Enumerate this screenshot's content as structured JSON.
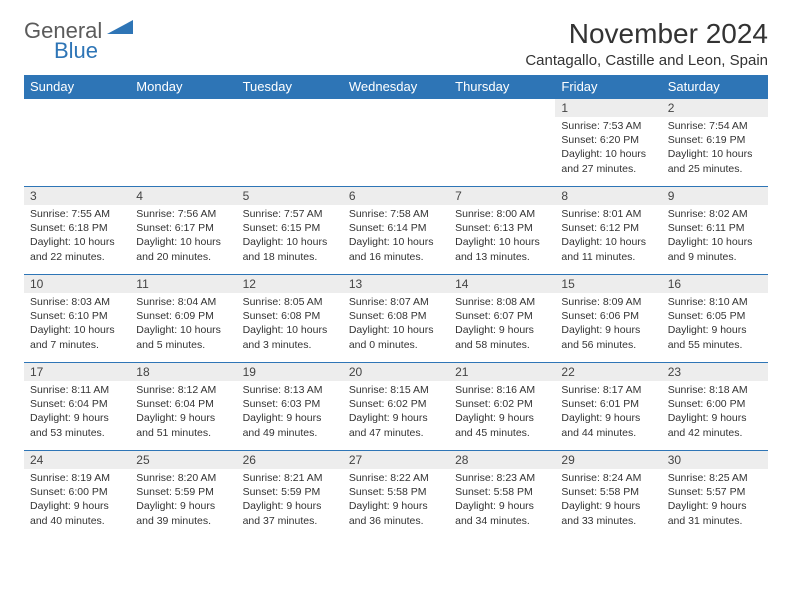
{
  "logo": {
    "word1": "General",
    "word2": "Blue",
    "color1": "#5b5b5b",
    "color2": "#2e75b6"
  },
  "title": "November 2024",
  "location": "Cantagallo, Castille and Leon, Spain",
  "header_bg": "#2e75b6",
  "header_fg": "#ffffff",
  "daynum_bg": "#ededed",
  "border_color": "#2e75b6",
  "day_headers": [
    "Sunday",
    "Monday",
    "Tuesday",
    "Wednesday",
    "Thursday",
    "Friday",
    "Saturday"
  ],
  "weeks": [
    [
      null,
      null,
      null,
      null,
      null,
      {
        "n": "1",
        "sr": "Sunrise: 7:53 AM",
        "ss": "Sunset: 6:20 PM",
        "d1": "Daylight: 10 hours",
        "d2": "and 27 minutes."
      },
      {
        "n": "2",
        "sr": "Sunrise: 7:54 AM",
        "ss": "Sunset: 6:19 PM",
        "d1": "Daylight: 10 hours",
        "d2": "and 25 minutes."
      }
    ],
    [
      {
        "n": "3",
        "sr": "Sunrise: 7:55 AM",
        "ss": "Sunset: 6:18 PM",
        "d1": "Daylight: 10 hours",
        "d2": "and 22 minutes."
      },
      {
        "n": "4",
        "sr": "Sunrise: 7:56 AM",
        "ss": "Sunset: 6:17 PM",
        "d1": "Daylight: 10 hours",
        "d2": "and 20 minutes."
      },
      {
        "n": "5",
        "sr": "Sunrise: 7:57 AM",
        "ss": "Sunset: 6:15 PM",
        "d1": "Daylight: 10 hours",
        "d2": "and 18 minutes."
      },
      {
        "n": "6",
        "sr": "Sunrise: 7:58 AM",
        "ss": "Sunset: 6:14 PM",
        "d1": "Daylight: 10 hours",
        "d2": "and 16 minutes."
      },
      {
        "n": "7",
        "sr": "Sunrise: 8:00 AM",
        "ss": "Sunset: 6:13 PM",
        "d1": "Daylight: 10 hours",
        "d2": "and 13 minutes."
      },
      {
        "n": "8",
        "sr": "Sunrise: 8:01 AM",
        "ss": "Sunset: 6:12 PM",
        "d1": "Daylight: 10 hours",
        "d2": "and 11 minutes."
      },
      {
        "n": "9",
        "sr": "Sunrise: 8:02 AM",
        "ss": "Sunset: 6:11 PM",
        "d1": "Daylight: 10 hours",
        "d2": "and 9 minutes."
      }
    ],
    [
      {
        "n": "10",
        "sr": "Sunrise: 8:03 AM",
        "ss": "Sunset: 6:10 PM",
        "d1": "Daylight: 10 hours",
        "d2": "and 7 minutes."
      },
      {
        "n": "11",
        "sr": "Sunrise: 8:04 AM",
        "ss": "Sunset: 6:09 PM",
        "d1": "Daylight: 10 hours",
        "d2": "and 5 minutes."
      },
      {
        "n": "12",
        "sr": "Sunrise: 8:05 AM",
        "ss": "Sunset: 6:08 PM",
        "d1": "Daylight: 10 hours",
        "d2": "and 3 minutes."
      },
      {
        "n": "13",
        "sr": "Sunrise: 8:07 AM",
        "ss": "Sunset: 6:08 PM",
        "d1": "Daylight: 10 hours",
        "d2": "and 0 minutes."
      },
      {
        "n": "14",
        "sr": "Sunrise: 8:08 AM",
        "ss": "Sunset: 6:07 PM",
        "d1": "Daylight: 9 hours",
        "d2": "and 58 minutes."
      },
      {
        "n": "15",
        "sr": "Sunrise: 8:09 AM",
        "ss": "Sunset: 6:06 PM",
        "d1": "Daylight: 9 hours",
        "d2": "and 56 minutes."
      },
      {
        "n": "16",
        "sr": "Sunrise: 8:10 AM",
        "ss": "Sunset: 6:05 PM",
        "d1": "Daylight: 9 hours",
        "d2": "and 55 minutes."
      }
    ],
    [
      {
        "n": "17",
        "sr": "Sunrise: 8:11 AM",
        "ss": "Sunset: 6:04 PM",
        "d1": "Daylight: 9 hours",
        "d2": "and 53 minutes."
      },
      {
        "n": "18",
        "sr": "Sunrise: 8:12 AM",
        "ss": "Sunset: 6:04 PM",
        "d1": "Daylight: 9 hours",
        "d2": "and 51 minutes."
      },
      {
        "n": "19",
        "sr": "Sunrise: 8:13 AM",
        "ss": "Sunset: 6:03 PM",
        "d1": "Daylight: 9 hours",
        "d2": "and 49 minutes."
      },
      {
        "n": "20",
        "sr": "Sunrise: 8:15 AM",
        "ss": "Sunset: 6:02 PM",
        "d1": "Daylight: 9 hours",
        "d2": "and 47 minutes."
      },
      {
        "n": "21",
        "sr": "Sunrise: 8:16 AM",
        "ss": "Sunset: 6:02 PM",
        "d1": "Daylight: 9 hours",
        "d2": "and 45 minutes."
      },
      {
        "n": "22",
        "sr": "Sunrise: 8:17 AM",
        "ss": "Sunset: 6:01 PM",
        "d1": "Daylight: 9 hours",
        "d2": "and 44 minutes."
      },
      {
        "n": "23",
        "sr": "Sunrise: 8:18 AM",
        "ss": "Sunset: 6:00 PM",
        "d1": "Daylight: 9 hours",
        "d2": "and 42 minutes."
      }
    ],
    [
      {
        "n": "24",
        "sr": "Sunrise: 8:19 AM",
        "ss": "Sunset: 6:00 PM",
        "d1": "Daylight: 9 hours",
        "d2": "and 40 minutes."
      },
      {
        "n": "25",
        "sr": "Sunrise: 8:20 AM",
        "ss": "Sunset: 5:59 PM",
        "d1": "Daylight: 9 hours",
        "d2": "and 39 minutes."
      },
      {
        "n": "26",
        "sr": "Sunrise: 8:21 AM",
        "ss": "Sunset: 5:59 PM",
        "d1": "Daylight: 9 hours",
        "d2": "and 37 minutes."
      },
      {
        "n": "27",
        "sr": "Sunrise: 8:22 AM",
        "ss": "Sunset: 5:58 PM",
        "d1": "Daylight: 9 hours",
        "d2": "and 36 minutes."
      },
      {
        "n": "28",
        "sr": "Sunrise: 8:23 AM",
        "ss": "Sunset: 5:58 PM",
        "d1": "Daylight: 9 hours",
        "d2": "and 34 minutes."
      },
      {
        "n": "29",
        "sr": "Sunrise: 8:24 AM",
        "ss": "Sunset: 5:58 PM",
        "d1": "Daylight: 9 hours",
        "d2": "and 33 minutes."
      },
      {
        "n": "30",
        "sr": "Sunrise: 8:25 AM",
        "ss": "Sunset: 5:57 PM",
        "d1": "Daylight: 9 hours",
        "d2": "and 31 minutes."
      }
    ]
  ]
}
